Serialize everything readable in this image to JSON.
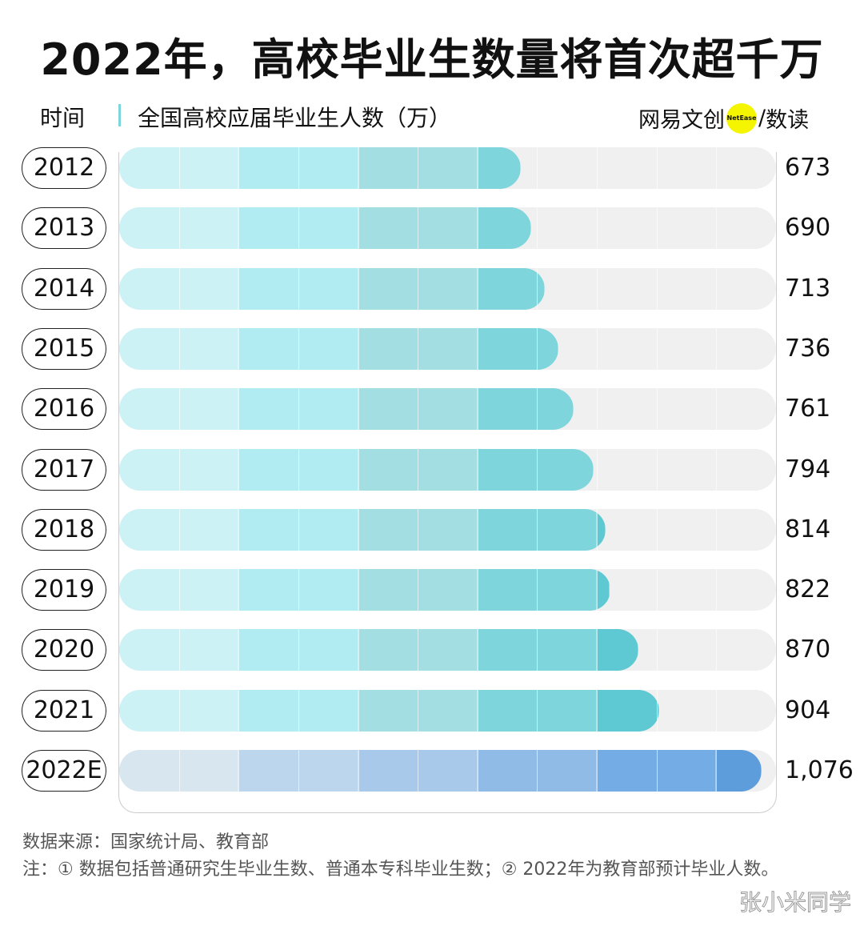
{
  "title": "2022年，高校毕业生数量将首次超千万",
  "header": {
    "time_label": "时间",
    "series_label": "全国高校应届毕业生人数（万）",
    "brand_left": "网易文创",
    "brand_dot": "NetEase",
    "brand_sep": "/",
    "brand_right": "数读"
  },
  "chart_data": {
    "type": "bar",
    "orientation": "horizontal",
    "title": "2022年，高校毕业生数量将首次超千万",
    "ylabel": "时间",
    "xlabel": "全国高校应届毕业生人数（万）",
    "categories": [
      "2012",
      "2013",
      "2014",
      "2015",
      "2016",
      "2017",
      "2018",
      "2019",
      "2020",
      "2021",
      "2022E"
    ],
    "value_labels": [
      "673",
      "690",
      "713",
      "736",
      "761",
      "794",
      "814",
      "822",
      "870",
      "904",
      "1,076"
    ],
    "values": [
      673,
      690,
      713,
      736,
      761,
      794,
      814,
      822,
      870,
      904,
      1076
    ],
    "xlim": [
      0,
      1100
    ],
    "colors": {
      "actual": [
        "#cdf2f6",
        "#b0ecf2",
        "#a3dfe2",
        "#7fd5dc",
        "#5ec9d3"
      ],
      "estimate": [
        "#d8e6f0",
        "#bcd6ee",
        "#a8c9ea",
        "#8fbbe6",
        "#74ade6",
        "#5e9ddb"
      ],
      "track": "#f0f0f0"
    }
  },
  "footer": {
    "source": "数据来源：国家统计局、教育部",
    "note": "注：① 数据包括普通研究生毕业生数、普通本专科毕业生数；② 2022年为教育部预计毕业人数。",
    "watermark": "张小米同学"
  }
}
